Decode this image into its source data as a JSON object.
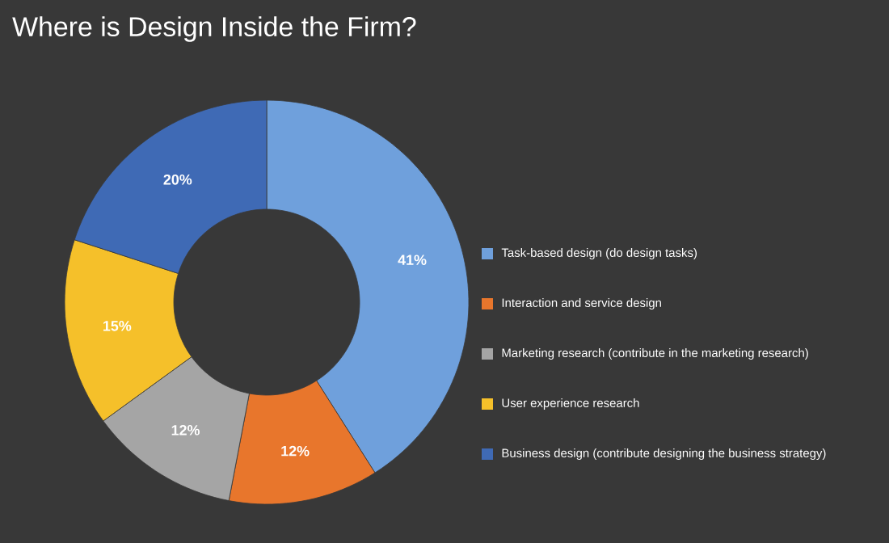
{
  "chart_data": {
    "type": "donut",
    "title": "Where is Design Inside the Firm?",
    "categories": [
      "Task-based design (do design tasks)",
      "Interaction and service design",
      "Marketing research (contribute in the marketing research)",
      "User experience research",
      "Business design (contribute designing the business strategy)"
    ],
    "values": [
      41,
      12,
      12,
      15,
      20
    ],
    "value_labels": [
      "41%",
      "12%",
      "12%",
      "15%",
      "20%"
    ],
    "colors": [
      "#6fa0dc",
      "#e8762c",
      "#a5a5a5",
      "#f5c02a",
      "#3f6ab5"
    ],
    "legend": "right"
  }
}
